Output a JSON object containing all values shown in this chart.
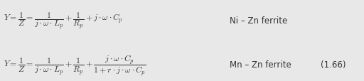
{
  "background_color": "#e8e8e8",
  "text_color": "#333333",
  "eq1_label": "Ni – Zn ferrite",
  "eq2_label": "Mn – Zn ferrite",
  "eq_number": "(1.66)",
  "figsize": [
    5.12,
    1.15
  ],
  "dpi": 100
}
